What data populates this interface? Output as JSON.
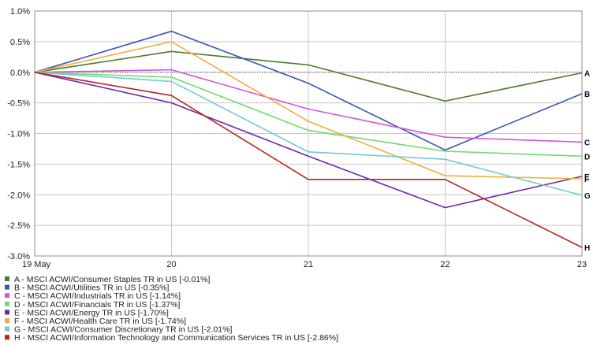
{
  "chart_data": {
    "type": "line",
    "title": "",
    "xlabel": "",
    "ylabel": "",
    "x": [
      "19 May",
      "20",
      "21",
      "22",
      "23"
    ],
    "ylim": [
      -3.0,
      1.0
    ],
    "yticks": [
      1.0,
      0.5,
      0.0,
      -0.5,
      -1.0,
      -1.5,
      -2.0,
      -2.5,
      -3.0
    ],
    "ytick_labels": [
      "1.0%",
      "0.5%",
      "0.0%",
      "-0.5%",
      "-1.0%",
      "-1.5%",
      "-2.0%",
      "-2.5%",
      "-3.0%"
    ],
    "grid": true,
    "legend_position": "bottom",
    "zero_line": "dotted",
    "series": [
      {
        "key": "A",
        "name": "A - MSCI ACWI/Consumer Staples TR in US [-0.01%]",
        "color": "#4e7a2c",
        "values": [
          0.0,
          0.34,
          0.12,
          -0.47,
          -0.01
        ]
      },
      {
        "key": "B",
        "name": "B - MSCI ACWI/Utilities TR in US [-0.35%]",
        "color": "#3a56b0",
        "values": [
          0.0,
          0.67,
          -0.18,
          -1.27,
          -0.35
        ]
      },
      {
        "key": "C",
        "name": "C - MSCI ACWI/Industrials TR in US [-1.14%]",
        "color": "#d257d8",
        "values": [
          0.0,
          0.04,
          -0.6,
          -1.06,
          -1.14
        ]
      },
      {
        "key": "D",
        "name": "D - MSCI ACWI/Financials TR in US [-1.37%]",
        "color": "#6fdc6f",
        "values": [
          0.0,
          -0.08,
          -0.95,
          -1.29,
          -1.37
        ]
      },
      {
        "key": "E",
        "name": "E - MSCI ACWI/Energy TR in US [-1.70%]",
        "color": "#6a2ab0",
        "values": [
          0.0,
          -0.5,
          -1.37,
          -2.21,
          -1.7
        ]
      },
      {
        "key": "F",
        "name": "F - MSCI ACWI/Health Care TR in US [-1.74%]",
        "color": "#f3ac41",
        "values": [
          0.0,
          0.5,
          -0.8,
          -1.69,
          -1.74
        ]
      },
      {
        "key": "G",
        "name": "G - MSCI ACWI/Consumer Discretionary TR in US [-2.01%]",
        "color": "#74c9d1",
        "values": [
          0.0,
          -0.15,
          -1.3,
          -1.42,
          -2.01
        ]
      },
      {
        "key": "H",
        "name": "H - MSCI ACWI/Information Technology and Communication Services TR in US [-2.86%]",
        "color": "#b3281e",
        "values": [
          0.0,
          -0.38,
          -1.75,
          -1.75,
          -2.86
        ]
      }
    ]
  }
}
